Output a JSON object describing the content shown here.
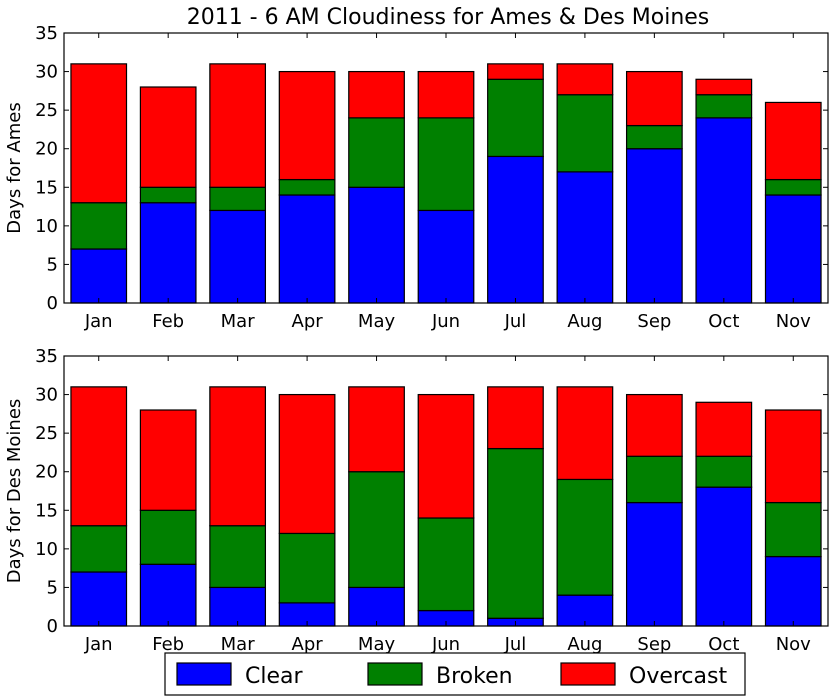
{
  "title": "2011 - 6 AM Cloudiness for Ames & Des Moines",
  "legend": {
    "placement": "bottom-center",
    "entries": [
      {
        "label": "Clear",
        "color": "#0000ff"
      },
      {
        "label": "Broken",
        "color": "#008000"
      },
      {
        "label": "Overcast",
        "color": "#ff0000"
      }
    ]
  },
  "chart_data": [
    {
      "type": "bar",
      "stacked": true,
      "ylabel": "Days for Ames",
      "ylim": [
        0,
        35
      ],
      "yticks": [
        0,
        5,
        10,
        15,
        20,
        25,
        30,
        35
      ],
      "categories": [
        "Jan",
        "Feb",
        "Mar",
        "Apr",
        "May",
        "Jun",
        "Jul",
        "Aug",
        "Sep",
        "Oct",
        "Nov"
      ],
      "series": [
        {
          "name": "Clear",
          "color": "#0000ff",
          "values": [
            7,
            13,
            12,
            14,
            15,
            12,
            19,
            17,
            20,
            24,
            14
          ]
        },
        {
          "name": "Broken",
          "color": "#008000",
          "values": [
            6,
            2,
            3,
            2,
            9,
            12,
            10,
            10,
            3,
            3,
            2
          ]
        },
        {
          "name": "Overcast",
          "color": "#ff0000",
          "values": [
            18,
            13,
            16,
            14,
            6,
            6,
            2,
            4,
            7,
            2,
            10
          ]
        }
      ]
    },
    {
      "type": "bar",
      "stacked": true,
      "ylabel": "Days for Des Moines",
      "ylim": [
        0,
        35
      ],
      "yticks": [
        0,
        5,
        10,
        15,
        20,
        25,
        30,
        35
      ],
      "categories": [
        "Jan",
        "Feb",
        "Mar",
        "Apr",
        "May",
        "Jun",
        "Jul",
        "Aug",
        "Sep",
        "Oct",
        "Nov"
      ],
      "series": [
        {
          "name": "Clear",
          "color": "#0000ff",
          "values": [
            7,
            8,
            5,
            3,
            5,
            2,
            1,
            4,
            16,
            18,
            9
          ]
        },
        {
          "name": "Broken",
          "color": "#008000",
          "values": [
            6,
            7,
            8,
            9,
            15,
            12,
            22,
            15,
            6,
            4,
            7
          ]
        },
        {
          "name": "Overcast",
          "color": "#ff0000",
          "values": [
            18,
            13,
            18,
            18,
            11,
            16,
            8,
            12,
            8,
            7,
            12
          ]
        }
      ]
    }
  ]
}
